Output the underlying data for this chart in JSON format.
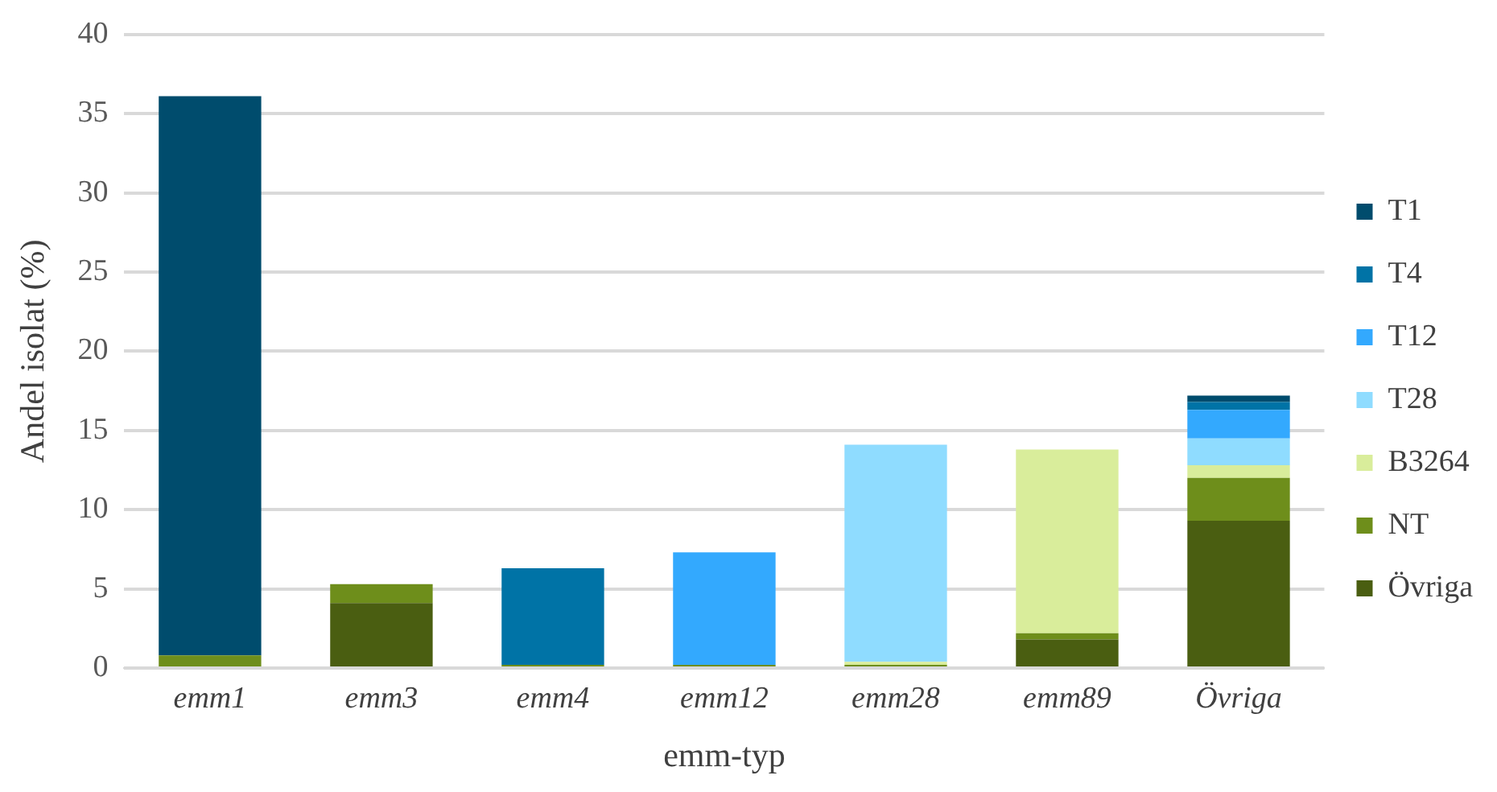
{
  "chart_data": {
    "type": "bar",
    "stacked": true,
    "xlabel": "emm-typ",
    "ylabel": "Andel isolat (%)",
    "categories": [
      "emm1",
      "emm3",
      "emm4",
      "emm12",
      "emm28",
      "emm89",
      "Övriga"
    ],
    "series": [
      {
        "name": "Övriga",
        "color": "#4a5e11",
        "values": [
          null,
          4.1,
          null,
          null,
          null,
          1.8,
          9.3
        ]
      },
      {
        "name": "NT",
        "color": "#6e8e1b",
        "values": [
          0.8,
          1.2,
          0.2,
          0.2,
          0.2,
          0.4,
          2.7
        ]
      },
      {
        "name": "B3264",
        "color": "#d9ed9b",
        "values": [
          null,
          null,
          null,
          null,
          0.2,
          11.6,
          0.8
        ]
      },
      {
        "name": "T28",
        "color": "#8fdcff",
        "values": [
          null,
          null,
          null,
          null,
          13.7,
          null,
          1.7
        ]
      },
      {
        "name": "T12",
        "color": "#33a9fe",
        "values": [
          null,
          null,
          null,
          7.1,
          null,
          null,
          1.8
        ]
      },
      {
        "name": "T4",
        "color": "#0073a6",
        "values": [
          null,
          null,
          6.1,
          null,
          null,
          null,
          0.5
        ]
      },
      {
        "name": "T1",
        "color": "#004c6d",
        "values": [
          35.3,
          null,
          null,
          null,
          null,
          null,
          0.4
        ]
      }
    ],
    "ylim": [
      0,
      40
    ],
    "yticks": [
      0,
      5,
      10,
      15,
      20,
      25,
      30,
      35,
      40
    ],
    "grid": "y",
    "legend": "right"
  }
}
